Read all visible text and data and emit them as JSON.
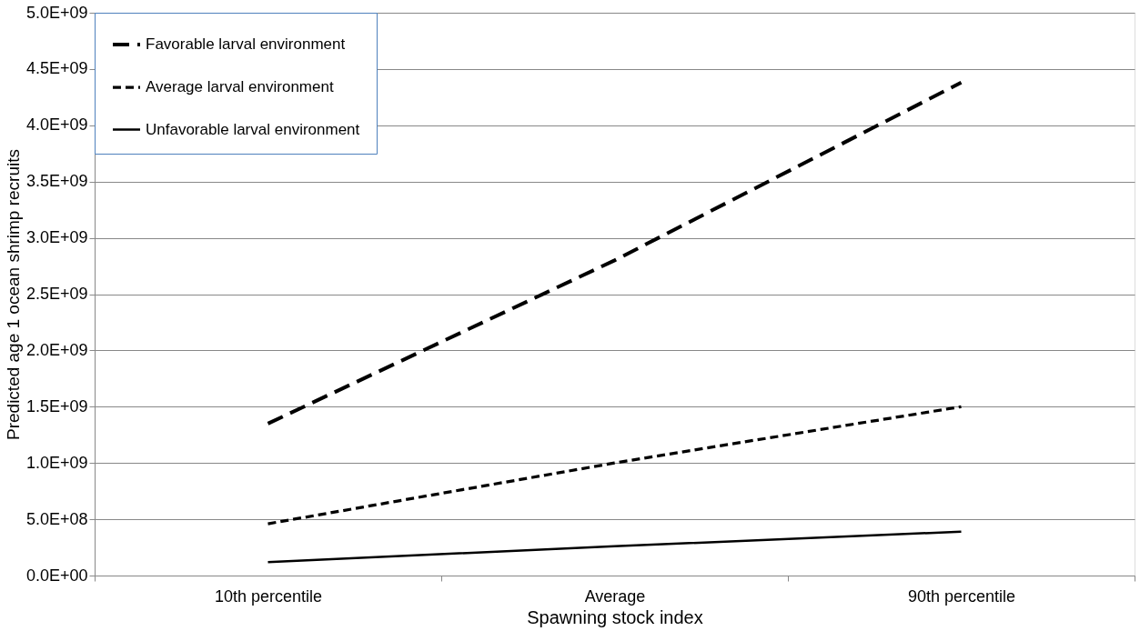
{
  "chart_data": {
    "type": "line",
    "xlabel": "Spawning stock index",
    "ylabel": "Predicted age 1 ocean shrimp recruits",
    "categories": [
      "10th percentile",
      "Average",
      "90th percentile"
    ],
    "series": [
      {
        "name": "Favorable larval environment",
        "color": "#000000",
        "line_style": "dashed",
        "values": [
          1350000000,
          2800000000,
          4380000000
        ]
      },
      {
        "name": "Average larval environment",
        "color": "#000000",
        "line_style": "dashed",
        "values": [
          460000000,
          1000000000,
          1500000000
        ]
      },
      {
        "name": "Unfavorable larval environment",
        "color": "#000000",
        "line_style": "solid",
        "values": [
          120000000,
          260000000,
          390000000
        ]
      }
    ],
    "ylim": [
      0,
      5000000000
    ],
    "yticks": [
      {
        "value": 0,
        "label": "0.0E+00"
      },
      {
        "value": 500000000,
        "label": "5.0E+08"
      },
      {
        "value": 1000000000,
        "label": "1.0E+09"
      },
      {
        "value": 1500000000,
        "label": "1.5E+09"
      },
      {
        "value": 2000000000,
        "label": "2.0E+09"
      },
      {
        "value": 2500000000,
        "label": "2.5E+09"
      },
      {
        "value": 3000000000,
        "label": "3.0E+09"
      },
      {
        "value": 3500000000,
        "label": "3.5E+09"
      },
      {
        "value": 4000000000,
        "label": "4.0E+09"
      },
      {
        "value": 4500000000,
        "label": "4.5E+09"
      },
      {
        "value": 5000000000,
        "label": "5.0E+09"
      }
    ],
    "grid": "y",
    "legend": "top left",
    "marker": "none"
  }
}
